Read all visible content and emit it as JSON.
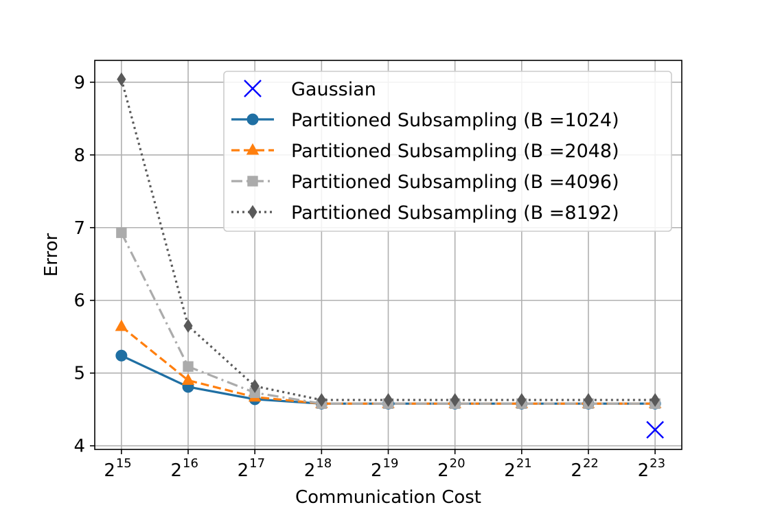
{
  "chart_data": {
    "type": "line",
    "title": "",
    "xlabel": "Communication Cost",
    "ylabel": "Error",
    "x_exponents": [
      15,
      16,
      17,
      18,
      19,
      20,
      21,
      22,
      23
    ],
    "x_tick_base": "2",
    "x_tick_exponents": [
      "15",
      "16",
      "17",
      "18",
      "19",
      "20",
      "21",
      "22",
      "23"
    ],
    "y_ticks": [
      "4",
      "5",
      "6",
      "7",
      "8",
      "9"
    ],
    "ylim": [
      3.95,
      9.3
    ],
    "xlim": [
      14.6,
      23.4
    ],
    "grid": true,
    "legend_position": "top-right",
    "series": [
      {
        "name": "Gaussian",
        "color": "#0000ff",
        "marker": "x",
        "linestyle": "none",
        "x": [
          23
        ],
        "values": [
          4.22
        ]
      },
      {
        "name": "Partitioned Subsampling (B =1024)",
        "color": "#1f6fa3",
        "marker": "circle",
        "linestyle": "solid",
        "x": [
          15,
          16,
          17,
          18,
          19,
          20,
          21,
          22,
          23
        ],
        "values": [
          5.24,
          4.81,
          4.64,
          4.58,
          4.58,
          4.58,
          4.58,
          4.58,
          4.58
        ]
      },
      {
        "name": "Partitioned Subsampling (B =2048)",
        "color": "#ff7f0e",
        "marker": "triangle",
        "linestyle": "dashed",
        "x": [
          15,
          16,
          17,
          18,
          19,
          20,
          21,
          22,
          23
        ],
        "values": [
          5.64,
          4.9,
          4.67,
          4.58,
          4.58,
          4.58,
          4.58,
          4.58,
          4.58
        ]
      },
      {
        "name": "Partitioned Subsampling (B =4096)",
        "color": "#ababab",
        "marker": "square",
        "linestyle": "dashdot",
        "x": [
          15,
          16,
          17,
          18,
          19,
          20,
          21,
          22,
          23
        ],
        "values": [
          6.93,
          5.09,
          4.73,
          4.58,
          4.58,
          4.58,
          4.58,
          4.58,
          4.58
        ]
      },
      {
        "name": "Partitioned Subsampling (B =8192)",
        "color": "#595959",
        "marker": "diamond",
        "linestyle": "dotted",
        "x": [
          15,
          16,
          17,
          18,
          19,
          20,
          21,
          22,
          23
        ],
        "values": [
          9.04,
          5.65,
          4.82,
          4.63,
          4.63,
          4.63,
          4.63,
          4.63,
          4.63
        ]
      }
    ]
  }
}
